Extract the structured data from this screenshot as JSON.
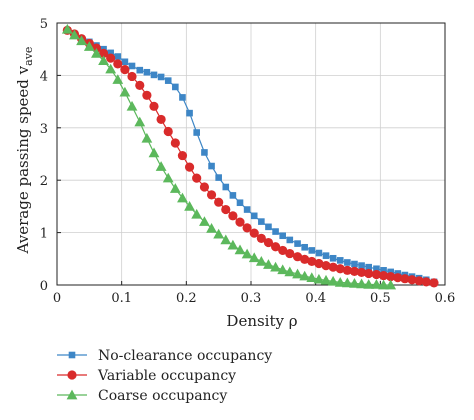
{
  "chart_data": {
    "type": "line",
    "xlabel": "Density ρ",
    "ylabel": "Average passing speed v",
    "ylabel_sub": "ave",
    "xlim": [
      0,
      0.6
    ],
    "ylim": [
      0,
      5
    ],
    "xticks": [
      "0",
      "0.1",
      "0.2",
      "0.3",
      "0.4",
      "0.5",
      "0.6"
    ],
    "yticks": [
      "0",
      "1",
      "2",
      "3",
      "4",
      "5"
    ],
    "grid": true,
    "legend_position": "below",
    "series": [
      {
        "name": "No-clearance occupancy",
        "color": "#3d86c6",
        "marker": "square",
        "x": [
          0.016,
          0.027,
          0.038,
          0.05,
          0.061,
          0.072,
          0.083,
          0.094,
          0.105,
          0.116,
          0.128,
          0.139,
          0.15,
          0.161,
          0.172,
          0.183,
          0.194,
          0.205,
          0.216,
          0.228,
          0.239,
          0.25,
          0.261,
          0.272,
          0.283,
          0.294,
          0.305,
          0.316,
          0.327,
          0.338,
          0.349,
          0.36,
          0.372,
          0.383,
          0.394,
          0.405,
          0.416,
          0.427,
          0.438,
          0.449,
          0.46,
          0.471,
          0.482,
          0.494,
          0.505,
          0.516,
          0.527,
          0.538,
          0.549,
          0.56,
          0.571,
          0.583
        ],
        "y": [
          4.86,
          4.79,
          4.7,
          4.64,
          4.57,
          4.5,
          4.43,
          4.36,
          4.26,
          4.18,
          4.1,
          4.06,
          4.01,
          3.97,
          3.9,
          3.78,
          3.58,
          3.28,
          2.91,
          2.53,
          2.27,
          2.05,
          1.87,
          1.71,
          1.57,
          1.44,
          1.32,
          1.21,
          1.11,
          1.02,
          0.94,
          0.86,
          0.79,
          0.72,
          0.66,
          0.61,
          0.56,
          0.51,
          0.47,
          0.43,
          0.4,
          0.37,
          0.34,
          0.31,
          0.28,
          0.25,
          0.22,
          0.19,
          0.16,
          0.13,
          0.1,
          0.06
        ]
      },
      {
        "name": "Variable occupancy",
        "color": "#d92b2b",
        "marker": "circle",
        "x": [
          0.016,
          0.027,
          0.038,
          0.05,
          0.061,
          0.072,
          0.083,
          0.094,
          0.105,
          0.116,
          0.128,
          0.139,
          0.15,
          0.161,
          0.172,
          0.183,
          0.194,
          0.205,
          0.216,
          0.228,
          0.239,
          0.25,
          0.261,
          0.272,
          0.283,
          0.294,
          0.305,
          0.316,
          0.327,
          0.338,
          0.349,
          0.36,
          0.372,
          0.383,
          0.394,
          0.405,
          0.416,
          0.427,
          0.438,
          0.449,
          0.46,
          0.471,
          0.482,
          0.494,
          0.505,
          0.516,
          0.527,
          0.538,
          0.549,
          0.56,
          0.571,
          0.583
        ],
        "y": [
          4.86,
          4.79,
          4.7,
          4.61,
          4.52,
          4.42,
          4.33,
          4.22,
          4.11,
          3.98,
          3.81,
          3.62,
          3.41,
          3.16,
          2.93,
          2.71,
          2.47,
          2.25,
          2.04,
          1.87,
          1.72,
          1.58,
          1.44,
          1.32,
          1.2,
          1.09,
          0.99,
          0.89,
          0.81,
          0.73,
          0.66,
          0.6,
          0.54,
          0.49,
          0.45,
          0.41,
          0.37,
          0.34,
          0.31,
          0.28,
          0.26,
          0.24,
          0.22,
          0.2,
          0.18,
          0.16,
          0.14,
          0.12,
          0.1,
          0.08,
          0.06,
          0.04
        ]
      },
      {
        "name": "Coarse occupancy",
        "color": "#5cb85c",
        "marker": "triangle",
        "x": [
          0.016,
          0.027,
          0.038,
          0.05,
          0.061,
          0.072,
          0.083,
          0.094,
          0.105,
          0.116,
          0.128,
          0.139,
          0.15,
          0.161,
          0.172,
          0.183,
          0.194,
          0.205,
          0.216,
          0.228,
          0.239,
          0.25,
          0.261,
          0.272,
          0.283,
          0.294,
          0.305,
          0.316,
          0.327,
          0.338,
          0.349,
          0.36,
          0.372,
          0.383,
          0.394,
          0.405,
          0.416,
          0.427,
          0.438,
          0.449,
          0.46,
          0.471,
          0.482,
          0.494,
          0.505,
          0.516
        ],
        "y": [
          4.88,
          4.77,
          4.66,
          4.55,
          4.42,
          4.28,
          4.12,
          3.92,
          3.68,
          3.41,
          3.11,
          2.8,
          2.52,
          2.26,
          2.04,
          1.84,
          1.66,
          1.5,
          1.35,
          1.21,
          1.08,
          0.97,
          0.86,
          0.76,
          0.67,
          0.59,
          0.52,
          0.45,
          0.39,
          0.34,
          0.29,
          0.25,
          0.21,
          0.17,
          0.14,
          0.11,
          0.09,
          0.07,
          0.05,
          0.04,
          0.03,
          0.02,
          0.01,
          0.01,
          0.0,
          0.0
        ]
      }
    ]
  }
}
